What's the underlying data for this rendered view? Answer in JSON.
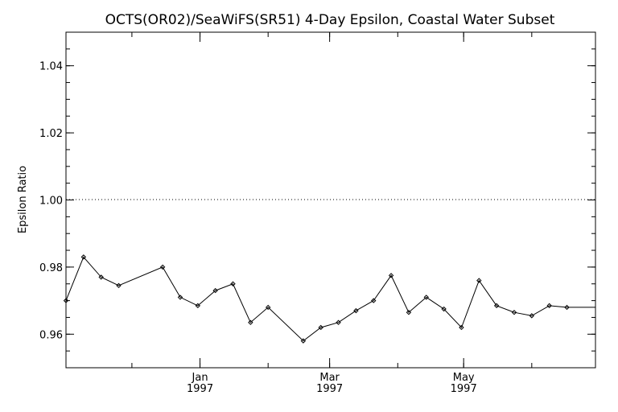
{
  "chart_data": {
    "type": "line",
    "title": "OCTS(OR02)/SeaWiFS(SR51) 4-Day Epsilon, Coastal Water Subset",
    "xlabel": "",
    "ylabel": "Epsilon Ratio",
    "ylim": [
      0.95,
      1.05
    ],
    "y_ticks": [
      "0.96",
      "0.98",
      "1.00",
      "1.02",
      "1.04"
    ],
    "y_tick_values": [
      0.96,
      0.98,
      1.0,
      1.02,
      1.04
    ],
    "x_tick_labels": [
      {
        "month": "Jan",
        "year": "1997",
        "date": "1997-01-01"
      },
      {
        "month": "Mar",
        "year": "1997",
        "date": "1997-03-01"
      },
      {
        "month": "May",
        "year": "1997",
        "date": "1997-05-01"
      }
    ],
    "xlim": [
      "1996-11-01",
      "1997-06-30"
    ],
    "reference_line": {
      "y": 1.0,
      "style": "dotted"
    },
    "grid": false,
    "series": [
      {
        "x": [
          "1996-11-01",
          "1996-11-09",
          "1996-11-17",
          "1996-11-25",
          "1996-12-15",
          "1996-12-23",
          "1996-12-31",
          "1997-01-08",
          "1997-01-16",
          "1997-01-24",
          "1997-02-01",
          "1997-02-17",
          "1997-02-25",
          "1997-03-05",
          "1997-03-13",
          "1997-03-21",
          "1997-03-29",
          "1997-04-06",
          "1997-04-14",
          "1997-04-22",
          "1997-04-30",
          "1997-05-08",
          "1997-05-16",
          "1997-05-24",
          "1997-06-01",
          "1997-06-09",
          "1997-06-17"
        ],
        "values": [
          0.97,
          0.983,
          0.977,
          0.9745,
          0.98,
          0.971,
          0.9685,
          0.973,
          0.975,
          0.9635,
          0.968,
          0.958,
          0.962,
          0.9635,
          0.967,
          0.97,
          0.9775,
          0.9665,
          0.971,
          0.9675,
          0.962,
          0.976,
          0.9685,
          0.9665,
          0.9655,
          0.9685,
          0.968
        ]
      }
    ]
  }
}
